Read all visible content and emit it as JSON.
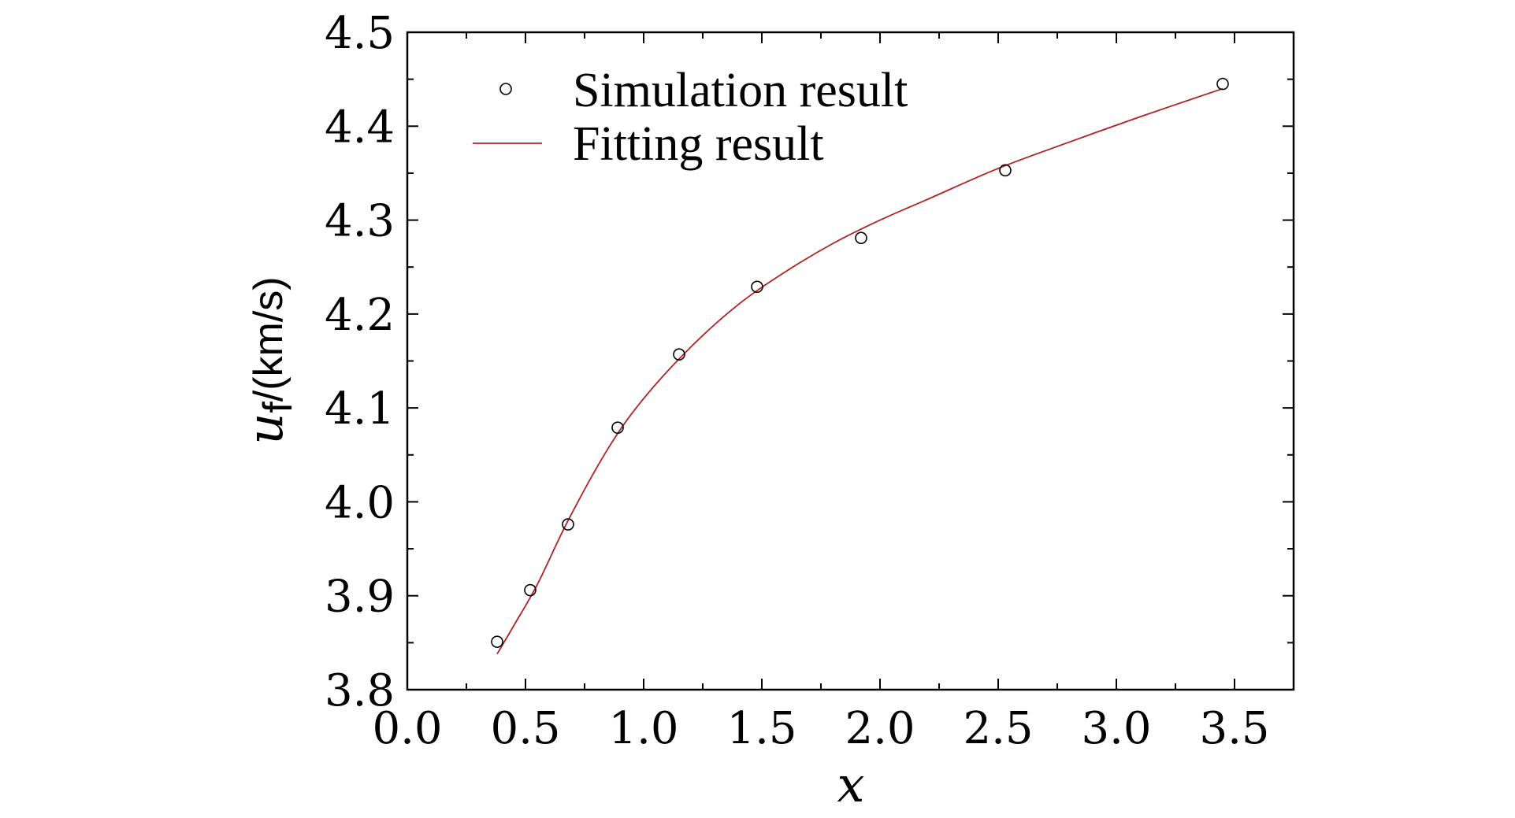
{
  "chart_data": {
    "type": "scatter",
    "xlabel": "x",
    "ylabel": {
      "symbol": "u",
      "subscript": "f",
      "unit": "/(km/s)"
    },
    "xlim": [
      0.0,
      3.75
    ],
    "ylim": [
      3.8,
      4.5
    ],
    "x_ticks": [
      "0.0",
      "0.5",
      "1.0",
      "1.5",
      "2.0",
      "2.5",
      "3.0",
      "3.5"
    ],
    "y_ticks": [
      "3.8",
      "3.9",
      "4.0",
      "4.1",
      "4.2",
      "4.3",
      "4.4",
      "4.5"
    ],
    "grid": false,
    "legend_position": "top-left",
    "series": [
      {
        "name": "Simulation result",
        "kind": "points",
        "marker": "open-circle",
        "color": "#000000",
        "points": [
          {
            "x": 0.38,
            "y": 3.851
          },
          {
            "x": 0.52,
            "y": 3.906
          },
          {
            "x": 0.68,
            "y": 3.976
          },
          {
            "x": 0.89,
            "y": 4.079
          },
          {
            "x": 1.15,
            "y": 4.157
          },
          {
            "x": 1.48,
            "y": 4.229
          },
          {
            "x": 1.92,
            "y": 4.281
          },
          {
            "x": 2.53,
            "y": 4.353
          },
          {
            "x": 3.45,
            "y": 4.445
          }
        ]
      },
      {
        "name": "Fitting result",
        "kind": "line",
        "color": "#b22222",
        "points": [
          {
            "x": 0.38,
            "y": 3.838
          },
          {
            "x": 0.45,
            "y": 3.868
          },
          {
            "x": 0.55,
            "y": 3.912
          },
          {
            "x": 0.68,
            "y": 3.98
          },
          {
            "x": 0.85,
            "y": 4.057
          },
          {
            "x": 1.0,
            "y": 4.11
          },
          {
            "x": 1.2,
            "y": 4.165
          },
          {
            "x": 1.4,
            "y": 4.21
          },
          {
            "x": 1.6,
            "y": 4.245
          },
          {
            "x": 1.8,
            "y": 4.275
          },
          {
            "x": 2.0,
            "y": 4.3
          },
          {
            "x": 2.2,
            "y": 4.322
          },
          {
            "x": 2.5,
            "y": 4.355
          },
          {
            "x": 2.8,
            "y": 4.383
          },
          {
            "x": 3.1,
            "y": 4.41
          },
          {
            "x": 3.45,
            "y": 4.44
          }
        ]
      }
    ]
  }
}
